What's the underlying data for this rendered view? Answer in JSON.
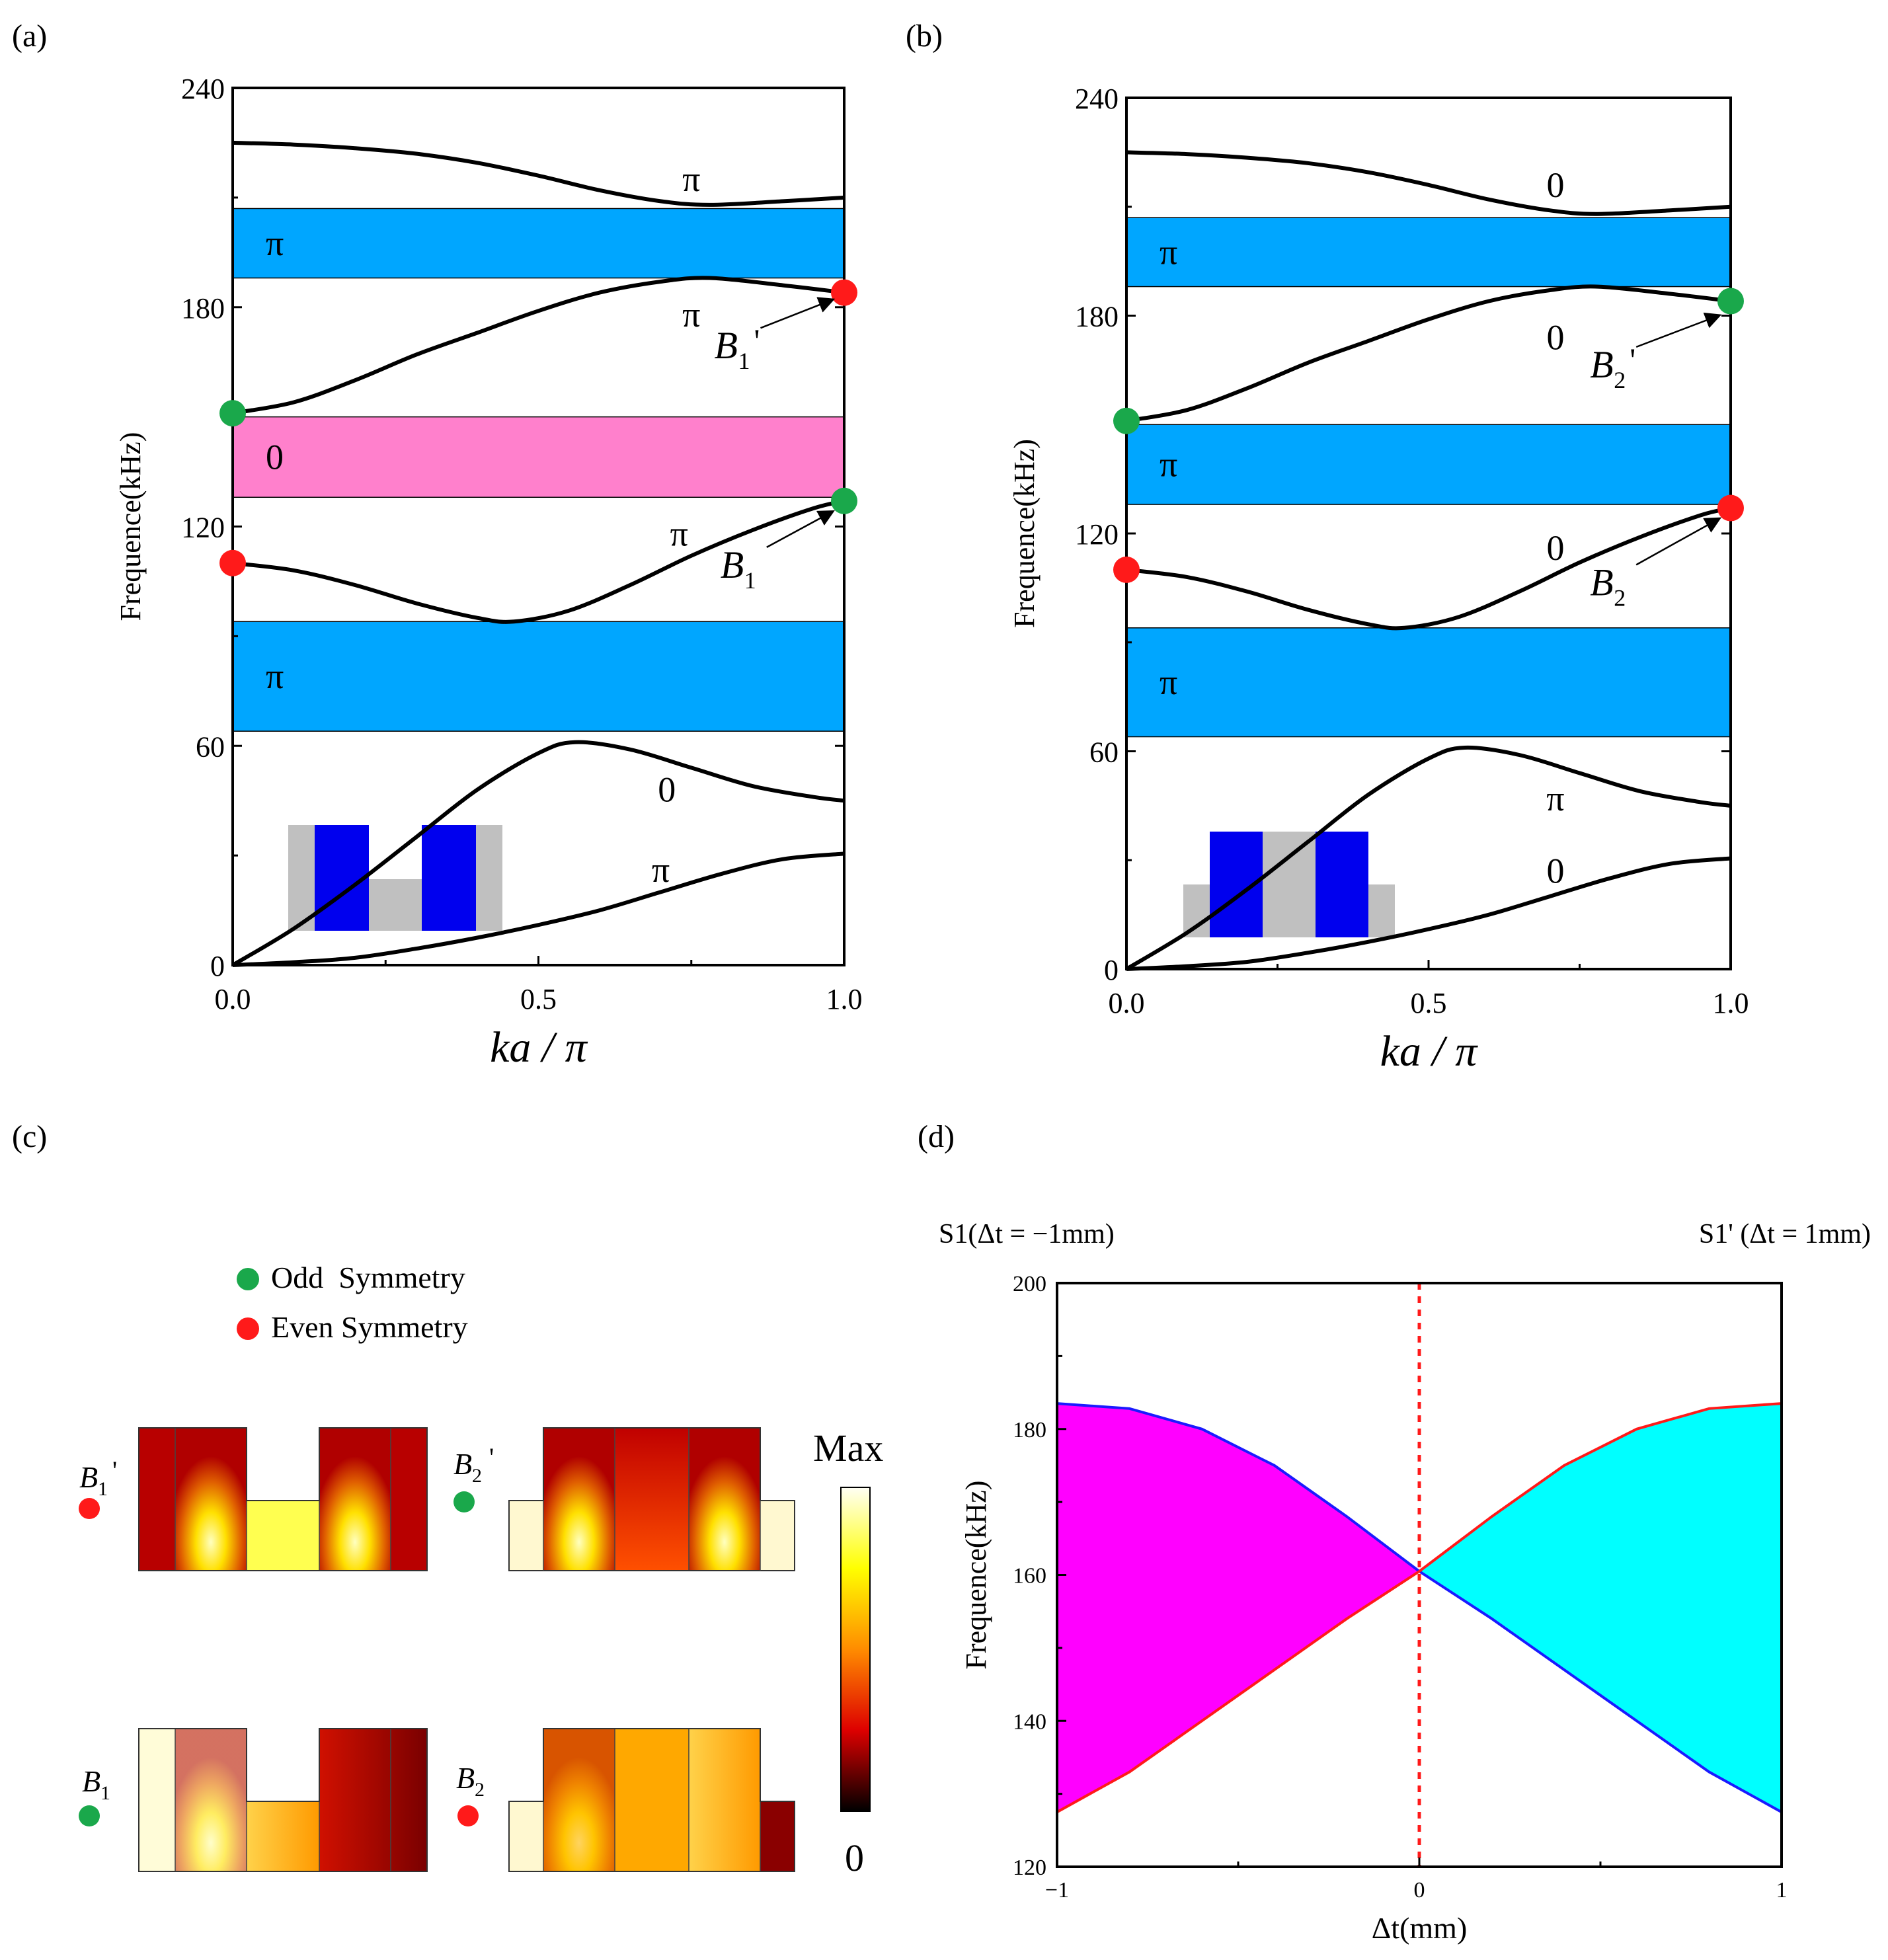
{
  "panel_labels": [
    "(a)",
    "(b)",
    "(c)",
    "(d)"
  ],
  "chart_data": [
    {
      "id": "a",
      "type": "line",
      "panel_label": "(a)",
      "xlabel": "ka / π",
      "ylabel": "Frequence(kHz)",
      "xlim": [
        0,
        1
      ],
      "ylim": [
        0,
        240
      ],
      "xticks": [
        0,
        0.5,
        1
      ],
      "xtick_labels": [
        "0.0",
        "0.5",
        "1.0"
      ],
      "yticks": [
        0,
        60,
        120,
        180,
        240
      ],
      "ytick_labels": [
        "0",
        "60",
        "120",
        "180",
        "240"
      ],
      "series": [
        {
          "name": "band1",
          "x": [
            0,
            0.1,
            0.2,
            0.3,
            0.4,
            0.5,
            0.6,
            0.7,
            0.8,
            0.9,
            1.0
          ],
          "y": [
            0,
            0.8,
            2,
            4.5,
            7.5,
            11,
            15,
            20,
            25,
            29,
            30.5
          ]
        },
        {
          "name": "band2",
          "x": [
            0,
            0.1,
            0.2,
            0.3,
            0.4,
            0.5,
            0.56,
            0.65,
            0.75,
            0.85,
            0.95,
            1.0
          ],
          "y": [
            0,
            10,
            22,
            35,
            48,
            58,
            61,
            59,
            54,
            49,
            46,
            45
          ]
        },
        {
          "name": "band3",
          "x": [
            0,
            0.1,
            0.2,
            0.3,
            0.4,
            0.46,
            0.55,
            0.65,
            0.75,
            0.85,
            0.95,
            1.0
          ],
          "y": [
            110,
            108,
            104,
            99,
            95,
            94,
            97,
            104,
            112,
            119,
            125,
            127
          ]
        },
        {
          "name": "band4",
          "x": [
            0,
            0.1,
            0.2,
            0.3,
            0.4,
            0.5,
            0.6,
            0.7,
            0.78,
            0.9,
            1.0
          ],
          "y": [
            151,
            154,
            160,
            167,
            173,
            179,
            184,
            187,
            188,
            186,
            184
          ]
        },
        {
          "name": "band5",
          "x": [
            0,
            0.1,
            0.2,
            0.3,
            0.4,
            0.5,
            0.6,
            0.7,
            0.78,
            0.9,
            1.0
          ],
          "y": [
            225,
            224.5,
            223.5,
            222,
            219.5,
            216,
            212,
            209,
            208,
            209,
            210
          ]
        }
      ],
      "bands": [
        {
          "y0": 64,
          "y1": 94,
          "color": "#00a6ff",
          "label": "π"
        },
        {
          "y0": 128,
          "y1": 150,
          "color": "#ff80cc",
          "label": "0"
        },
        {
          "y0": 188,
          "y1": 207,
          "color": "#00a6ff",
          "label": "π"
        }
      ],
      "band_labels": [
        {
          "text": "π",
          "x": 0.75,
          "y": 215
        },
        {
          "text": "π",
          "x": 0.75,
          "y": 178
        },
        {
          "text": "π",
          "x": 0.73,
          "y": 118
        },
        {
          "text": "0",
          "x": 0.71,
          "y": 48
        },
        {
          "text": "π",
          "x": 0.7,
          "y": 26
        }
      ],
      "points": [
        {
          "x": 0,
          "y": 151,
          "color": "#1aa84b"
        },
        {
          "x": 0,
          "y": 110,
          "color": "#ff1a1a"
        },
        {
          "x": 1,
          "y": 184,
          "color": "#ff1a1a"
        },
        {
          "x": 1,
          "y": 127,
          "color": "#1aa84b"
        }
      ],
      "annotations": [
        {
          "name": "B",
          "sub": "1",
          "prime": "'",
          "x": 0.82,
          "y": 166,
          "to_x": 0.98,
          "to_y": 182
        },
        {
          "name": "B",
          "sub": "1",
          "prime": "",
          "x": 0.83,
          "y": 106,
          "to_x": 0.98,
          "to_y": 124
        }
      ],
      "inset": "structure-a"
    },
    {
      "id": "b",
      "type": "line",
      "panel_label": "(b)",
      "xlabel": "ka / π",
      "ylabel": "Frequence(kHz)",
      "xlim": [
        0,
        1
      ],
      "ylim": [
        0,
        240
      ],
      "xticks": [
        0,
        0.5,
        1
      ],
      "xtick_labels": [
        "0.0",
        "0.5",
        "1.0"
      ],
      "yticks": [
        0,
        60,
        120,
        180,
        240
      ],
      "ytick_labels": [
        "0",
        "60",
        "120",
        "180",
        "240"
      ],
      "series": [
        {
          "name": "band1",
          "x": [
            0,
            0.1,
            0.2,
            0.3,
            0.4,
            0.5,
            0.6,
            0.7,
            0.8,
            0.9,
            1.0
          ],
          "y": [
            0,
            0.8,
            2,
            4.5,
            7.5,
            11,
            15,
            20,
            25,
            29,
            30.5
          ]
        },
        {
          "name": "band2",
          "x": [
            0,
            0.1,
            0.2,
            0.3,
            0.4,
            0.5,
            0.56,
            0.65,
            0.75,
            0.85,
            0.95,
            1.0
          ],
          "y": [
            0,
            10,
            22,
            35,
            48,
            58,
            61,
            59,
            54,
            49,
            46,
            45
          ]
        },
        {
          "name": "band3",
          "x": [
            0,
            0.1,
            0.2,
            0.3,
            0.4,
            0.46,
            0.55,
            0.65,
            0.75,
            0.85,
            0.95,
            1.0
          ],
          "y": [
            110,
            108,
            104,
            99,
            95,
            94,
            97,
            104,
            112,
            119,
            125,
            127
          ]
        },
        {
          "name": "band4",
          "x": [
            0,
            0.1,
            0.2,
            0.3,
            0.4,
            0.5,
            0.6,
            0.7,
            0.78,
            0.9,
            1.0
          ],
          "y": [
            151,
            154,
            160,
            167,
            173,
            179,
            184,
            187,
            188,
            186,
            184
          ]
        },
        {
          "name": "band5",
          "x": [
            0,
            0.1,
            0.2,
            0.3,
            0.4,
            0.5,
            0.6,
            0.7,
            0.78,
            0.9,
            1.0
          ],
          "y": [
            225,
            224.5,
            223.5,
            222,
            219.5,
            216,
            212,
            209,
            208,
            209,
            210
          ]
        }
      ],
      "bands": [
        {
          "y0": 64,
          "y1": 94,
          "color": "#00a6ff",
          "label": "π"
        },
        {
          "y0": 128,
          "y1": 150,
          "color": "#00a6ff",
          "label": "π"
        },
        {
          "y0": 188,
          "y1": 207,
          "color": "#00a6ff",
          "label": "π"
        }
      ],
      "band_labels": [
        {
          "text": "0",
          "x": 0.71,
          "y": 216
        },
        {
          "text": "0",
          "x": 0.71,
          "y": 174
        },
        {
          "text": "0",
          "x": 0.71,
          "y": 116
        },
        {
          "text": "π",
          "x": 0.71,
          "y": 47
        },
        {
          "text": "0",
          "x": 0.71,
          "y": 27
        }
      ],
      "points": [
        {
          "x": 0,
          "y": 151,
          "color": "#1aa84b"
        },
        {
          "x": 0,
          "y": 110,
          "color": "#ff1a1a"
        },
        {
          "x": 1,
          "y": 184,
          "color": "#1aa84b"
        },
        {
          "x": 1,
          "y": 127,
          "color": "#ff1a1a"
        }
      ],
      "annotations": [
        {
          "name": "B",
          "sub": "2",
          "prime": "'",
          "x": 0.8,
          "y": 163,
          "to_x": 0.98,
          "to_y": 180
        },
        {
          "name": "B",
          "sub": "2",
          "prime": "",
          "x": 0.8,
          "y": 103,
          "to_x": 0.98,
          "to_y": 124
        }
      ],
      "inset": "structure-b"
    },
    {
      "id": "c",
      "type": "heatmap",
      "panel_label": "(c)",
      "legend": [
        {
          "label": "Odd  Symmetry",
          "color": "#1aa84b"
        },
        {
          "label": "Even Symmetry",
          "color": "#ff1a1a"
        }
      ],
      "colorbar": {
        "max_label": "Max",
        "min_label": "0"
      },
      "modes": [
        {
          "name": "B",
          "sub": "1",
          "prime": "'",
          "dot": "#ff1a1a"
        },
        {
          "name": "B",
          "sub": "2",
          "prime": "'",
          "dot": "#1aa84b"
        },
        {
          "name": "B",
          "sub": "1",
          "prime": "",
          "dot": "#1aa84b"
        },
        {
          "name": "B",
          "sub": "2",
          "prime": "",
          "dot": "#ff1a1a"
        }
      ]
    },
    {
      "id": "d",
      "type": "area",
      "panel_label": "(d)",
      "title_left": "S1(Δt = −1mm)",
      "title_right": "S1' (Δt = 1mm)",
      "xlabel": "Δt(mm)",
      "ylabel": "Frequence(kHz)",
      "xlim": [
        -1,
        1
      ],
      "ylim": [
        120,
        200
      ],
      "xticks": [
        -1,
        0,
        1
      ],
      "xtick_labels": [
        "−1",
        "0",
        "1"
      ],
      "yticks": [
        120,
        140,
        160,
        180,
        200
      ],
      "ytick_labels": [
        "120",
        "140",
        "160",
        "180",
        "200"
      ],
      "series": [
        {
          "name": "blue-boundary",
          "color": "#1a1aff",
          "x": [
            -1,
            -0.8,
            -0.6,
            -0.4,
            -0.2,
            0,
            0.2,
            0.4,
            0.6,
            0.8,
            1
          ],
          "y": [
            183.5,
            182.8,
            180,
            175,
            168,
            160.5,
            154,
            147,
            140,
            133,
            127.5
          ]
        },
        {
          "name": "red-boundary",
          "color": "#ff1a1a",
          "x": [
            -1,
            -0.8,
            -0.6,
            -0.4,
            -0.2,
            0,
            0.2,
            0.4,
            0.6,
            0.8,
            1
          ],
          "y": [
            127.5,
            133,
            140,
            147,
            154,
            160.5,
            168,
            175,
            180,
            182.8,
            183.5
          ]
        }
      ],
      "fills": [
        {
          "name": "left-region",
          "color": "#ff00ff",
          "x_range": [
            -1,
            0
          ]
        },
        {
          "name": "right-region",
          "color": "#00ffff",
          "x_range": [
            0,
            1
          ]
        }
      ],
      "vline": {
        "x": 0,
        "color": "#ff1a1a",
        "style": "dotted"
      }
    }
  ]
}
